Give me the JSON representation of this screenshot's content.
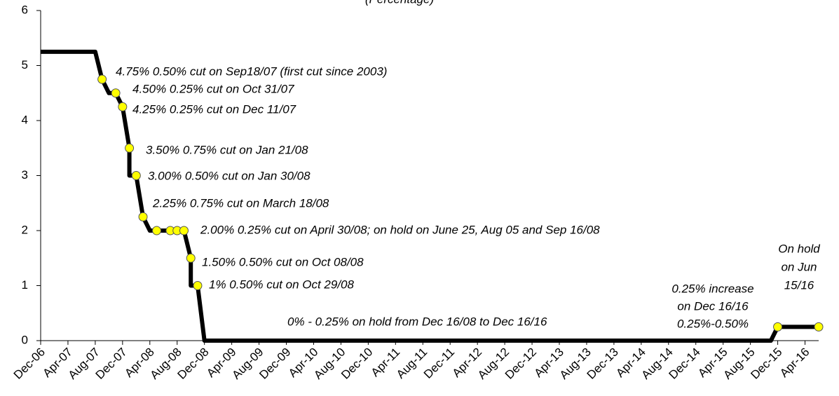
{
  "chart_data": {
    "type": "line",
    "subtitle": "(Percentage)",
    "xlim": [
      "Dec-06",
      "Jun-16"
    ],
    "xticks": [
      "Dec-06",
      "Apr-07",
      "Aug-07",
      "Dec-07",
      "Apr-08",
      "Aug-08",
      "Dec-08",
      "Apr-09",
      "Aug-09",
      "Dec-09",
      "Apr-10",
      "Aug-10",
      "Dec-10",
      "Apr-11",
      "Aug-11",
      "Dec-11",
      "Apr-12",
      "Aug-12",
      "Dec-12",
      "Apr-13",
      "Aug-13",
      "Dec-13",
      "Apr-14",
      "Aug-14",
      "Dec-14",
      "Apr-15",
      "Aug-15",
      "Dec-15",
      "Apr-16"
    ],
    "ylim": [
      0,
      6
    ],
    "yticks": [
      0,
      1,
      2,
      3,
      4,
      5,
      6
    ],
    "series": [
      {
        "color": "#000000",
        "x": [
          "Dec-06",
          "Aug-07",
          "Sep-07",
          "Oct-07",
          "Nov-07",
          "Dec-07",
          "Jan-08",
          "Jan-08",
          "Feb-08",
          "Mar-08",
          "Apr-08",
          "Sep-08",
          "Oct-08",
          "Oct-08",
          "Nov-08",
          "Dec-08",
          "Nov-15",
          "Dec-15",
          "Jun-16"
        ],
        "values": [
          5.25,
          5.25,
          4.75,
          4.5,
          4.5,
          4.25,
          3.5,
          3.0,
          3.0,
          2.25,
          2.0,
          2.0,
          1.5,
          1.0,
          1.0,
          0,
          0,
          0.25,
          0.25
        ]
      },
      {
        "color": "#ffff00",
        "marker": true,
        "x": [
          "Sep-07",
          "Nov-07",
          "Dec-07",
          "Jan-08",
          "Feb-08",
          "Mar-08",
          "May-08",
          "Jul-08",
          "Aug-08",
          "Sep-08",
          "Oct-08",
          "Nov-08",
          "Dec-15",
          "Jun-16"
        ],
        "values": [
          4.75,
          4.5,
          4.25,
          3.5,
          3.0,
          2.25,
          2.0,
          2.0,
          2.0,
          2.0,
          1.5,
          1.0,
          0.25,
          0.25
        ]
      }
    ],
    "annotations": [
      "4.75%  0.50% cut on Sep18/07 (first cut since 2003)",
      "4.50%  0.25% cut on Oct 31/07",
      "4.25%  0.25% cut on Dec 11/07",
      "3.50% 0.75% cut on Jan 21/08",
      "3.00%  0.50% cut on Jan 30/08",
      "2.25%  0.75% cut on March 18/08",
      "2.00%  0.25% cut on April 30/08; on hold on June 25, Aug 05 and Sep 16/08",
      "1.50%   0.50% cut on Oct 08/08",
      "1%   0.50% cut on Oct 29/08",
      "0% - 0.25% on  hold from Dec 16/08 to Dec 16/16",
      "0.25% increase",
      "on Dec 16/16",
      "0.25%-0.50%",
      "On hold",
      "on Jun",
      "15/16"
    ]
  }
}
